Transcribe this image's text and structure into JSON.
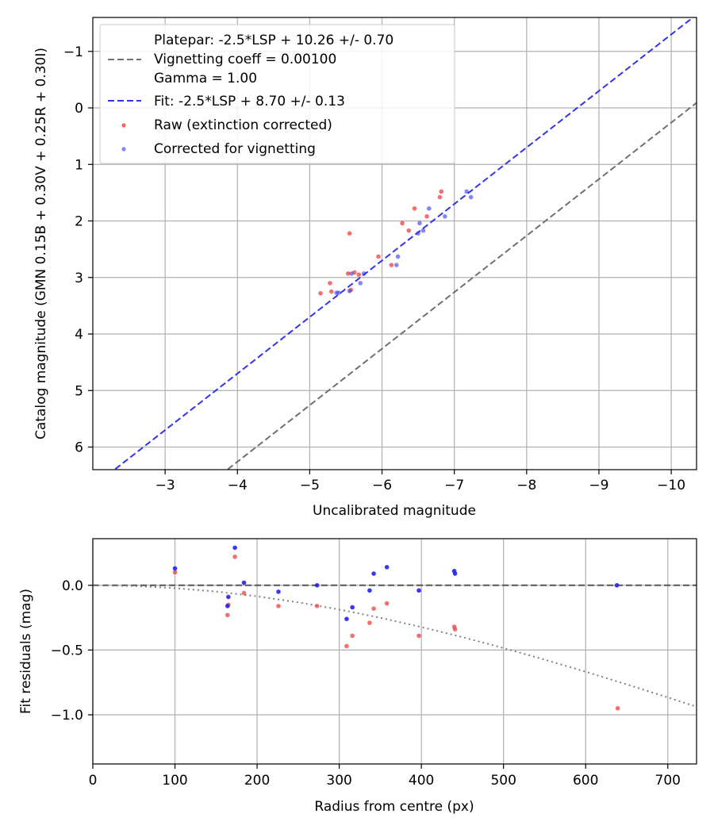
{
  "chart_data": [
    {
      "type": "scatter",
      "xlabel": "Uncalibrated magnitude",
      "ylabel": "Catalog magnitude (GMN 0.15B + 0.30V + 0.25R + 0.30I)",
      "xlim": [
        -2.0,
        -10.35
      ],
      "ylim": [
        6.4,
        -1.6
      ],
      "x_ticks": [
        -3,
        -4,
        -5,
        -6,
        -7,
        -8,
        -9,
        -10
      ],
      "x_tick_labels": [
        "−3",
        "−4",
        "−5",
        "−6",
        "−7",
        "−8",
        "−9",
        "−10"
      ],
      "y_ticks": [
        -1,
        0,
        1,
        2,
        3,
        4,
        5,
        6
      ],
      "y_tick_labels": [
        "−1",
        "0",
        "1",
        "2",
        "3",
        "4",
        "5",
        "6"
      ],
      "grid": true,
      "legend_position": "top-left",
      "legend": {
        "platepar_line1": "Platepar: -2.5*LSP + 10.26 +/- 0.70",
        "platepar_line2": "Vignetting coeff = 0.00100",
        "platepar_line3": "Gamma = 1.00",
        "fit": "Fit: -2.5*LSP + 8.70 +/- 0.13",
        "raw": "Raw (extinction corrected)",
        "corrected": "Corrected for vignetting"
      },
      "lines": [
        {
          "name": "Platepar",
          "intercept": 10.26,
          "slope": 1,
          "style": "dashed",
          "color": "#707070"
        },
        {
          "name": "Fit",
          "intercept": 8.7,
          "slope": 1,
          "style": "dashed",
          "color": "#3333ee"
        }
      ],
      "series": [
        {
          "name": "Raw (extinction corrected)",
          "color": "#ee3333",
          "points": [
            [
              -5.15,
              3.28
            ],
            [
              -5.28,
              3.1
            ],
            [
              -5.3,
              3.25
            ],
            [
              -5.53,
              2.93
            ],
            [
              -5.55,
              2.22
            ],
            [
              -5.57,
              3.22
            ],
            [
              -5.62,
              2.91
            ],
            [
              -5.68,
              2.95
            ],
            [
              -5.95,
              2.63
            ],
            [
              -6.13,
              2.78
            ],
            [
              -6.28,
              2.04
            ],
            [
              -6.37,
              2.17
            ],
            [
              -6.45,
              1.78
            ],
            [
              -6.62,
              1.92
            ],
            [
              -6.8,
              1.58
            ],
            [
              -6.82,
              1.48
            ]
          ]
        },
        {
          "name": "Corrected for vignetting",
          "color": "#3333ee",
          "points": [
            [
              -5.37,
              3.27
            ],
            [
              -5.4,
              3.27
            ],
            [
              -5.55,
              3.24
            ],
            [
              -5.58,
              2.93
            ],
            [
              -5.7,
              3.1
            ],
            [
              -5.75,
              2.93
            ],
            [
              -6.2,
              2.78
            ],
            [
              -6.22,
              2.63
            ],
            [
              -6.5,
              2.22
            ],
            [
              -6.52,
              2.04
            ],
            [
              -6.57,
              2.17
            ],
            [
              -6.65,
              1.78
            ],
            [
              -6.87,
              1.92
            ],
            [
              -7.17,
              1.48
            ],
            [
              -7.23,
              1.58
            ]
          ]
        }
      ]
    },
    {
      "type": "scatter",
      "xlabel": "Radius from centre (px)",
      "ylabel": "Fit residuals (mag)",
      "xlim": [
        0,
        735
      ],
      "ylim": [
        -1.38,
        0.36
      ],
      "x_ticks": [
        0,
        100,
        200,
        300,
        400,
        500,
        600,
        700
      ],
      "x_tick_labels": [
        "0",
        "100",
        "200",
        "300",
        "400",
        "500",
        "600",
        "700"
      ],
      "y_ticks": [
        0.0,
        -0.5,
        -1.0
      ],
      "y_tick_labels": [
        "0.0",
        "−0.5",
        "−1.0"
      ],
      "grid": true,
      "reference_line": {
        "y": 0,
        "style": "dashed",
        "color": "#555555"
      },
      "vignetting_curve": {
        "style": "dotted",
        "color": "#808080",
        "coefficient": 0.001,
        "samples_x": [
          0,
          50,
          100,
          150,
          200,
          250,
          300,
          350,
          400,
          450,
          500,
          550,
          600,
          650,
          700,
          735
        ]
      },
      "series": [
        {
          "name": "Raw (extinction corrected)",
          "color": "#ee3333",
          "points": [
            [
              100,
              0.1
            ],
            [
              164,
              -0.23
            ],
            [
              165,
              -0.15
            ],
            [
              173,
              0.22
            ],
            [
              184,
              -0.06
            ],
            [
              226,
              -0.16
            ],
            [
              273,
              -0.16
            ],
            [
              309,
              -0.47
            ],
            [
              316,
              -0.39
            ],
            [
              337,
              -0.29
            ],
            [
              342,
              -0.18
            ],
            [
              358,
              -0.14
            ],
            [
              397,
              -0.39
            ],
            [
              440,
              -0.32
            ],
            [
              441,
              -0.34
            ],
            [
              639,
              -0.95
            ]
          ]
        },
        {
          "name": "Corrected for vignetting",
          "color": "#2222ee",
          "points": [
            [
              100,
              0.13
            ],
            [
              164,
              -0.16
            ],
            [
              165,
              -0.09
            ],
            [
              173,
              0.29
            ],
            [
              184,
              0.02
            ],
            [
              226,
              -0.05
            ],
            [
              273,
              0.0
            ],
            [
              309,
              -0.26
            ],
            [
              316,
              -0.17
            ],
            [
              337,
              -0.04
            ],
            [
              342,
              0.09
            ],
            [
              358,
              0.14
            ],
            [
              397,
              -0.04
            ],
            [
              440,
              0.11
            ],
            [
              441,
              0.09
            ],
            [
              638,
              0.0
            ]
          ]
        }
      ]
    }
  ]
}
